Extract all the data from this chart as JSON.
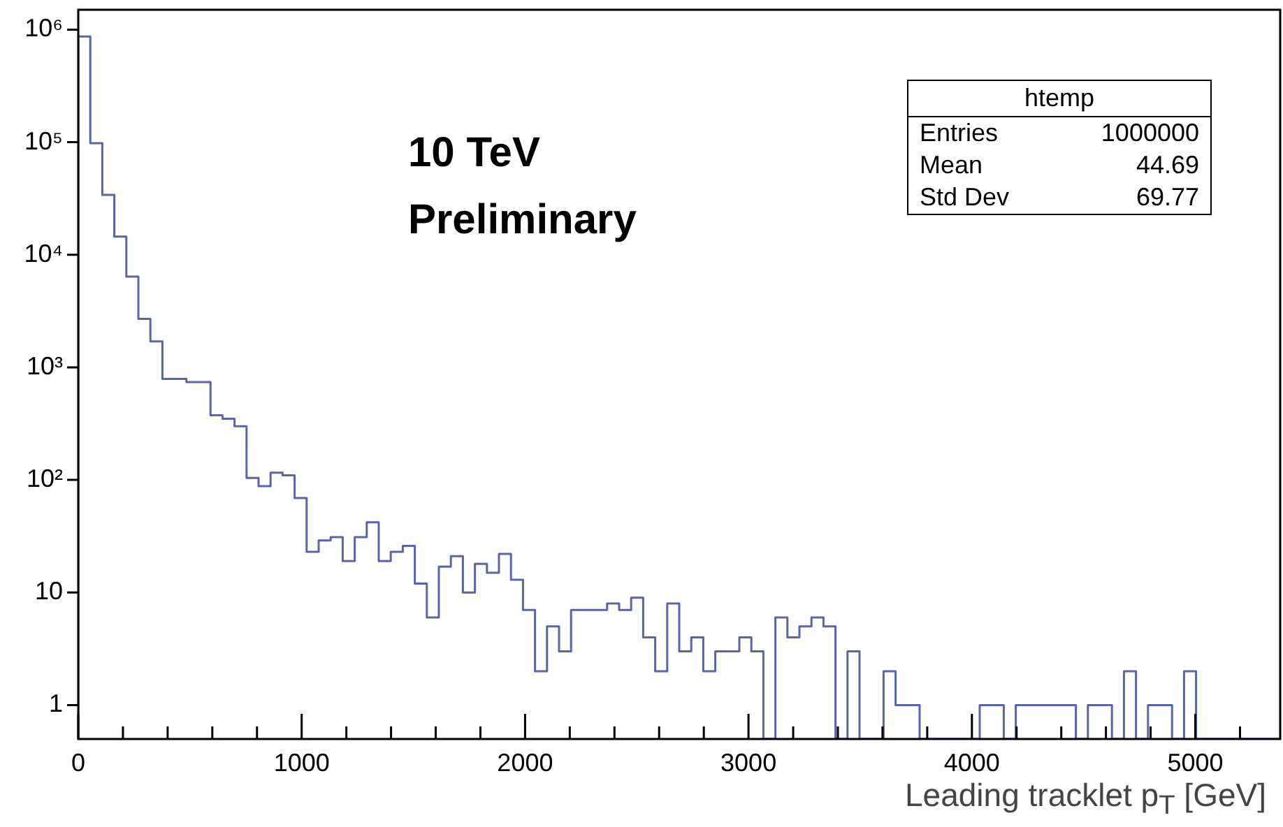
{
  "chart_data": {
    "type": "histogram",
    "color": "#5c63a8",
    "log": true,
    "xlabel": "Leading tracklet p$_{T}$ [GeV]",
    "xlim": [
      0,
      5380
    ],
    "ylim": [
      0.5,
      1500000
    ],
    "xticks": [
      0,
      {
        "value": 200,
        "label": null
      },
      {
        "value": 400,
        "label": null
      },
      {
        "value": 600,
        "label": null
      },
      {
        "value": 800,
        "label": null
      },
      1000,
      {
        "value": 1200,
        "label": null
      },
      {
        "value": 1400,
        "label": null
      },
      {
        "value": 1600,
        "label": null
      },
      {
        "value": 1800,
        "label": null
      },
      2000,
      {
        "value": 2200,
        "label": null
      },
      {
        "value": 2400,
        "label": null
      },
      {
        "value": 2600,
        "label": null
      },
      {
        "value": 2800,
        "label": null
      },
      3000,
      {
        "value": 3200,
        "label": null
      },
      {
        "value": 3400,
        "label": null
      },
      {
        "value": 3600,
        "label": null
      },
      {
        "value": 3800,
        "label": null
      },
      4000,
      {
        "value": 4200,
        "label": null
      },
      {
        "value": 4400,
        "label": null
      },
      {
        "value": 4600,
        "label": null
      },
      {
        "value": 4800,
        "label": null
      },
      5000,
      {
        "value": 5200,
        "label": null
      }
    ],
    "yticks": [
      1,
      10,
      {
        "value": 100,
        "label": "10²"
      },
      {
        "value": 1000,
        "label": "10³"
      },
      {
        "value": 10000,
        "label": "10⁴"
      },
      {
        "value": 100000,
        "label": "10⁵"
      },
      {
        "value": 1000000,
        "label": "10⁶"
      }
    ],
    "bins": [
      0,
      53.8,
      107.6,
      161.4,
      215.2,
      269,
      322.8,
      376.6,
      430.4,
      484.2,
      538,
      591.8,
      645.6,
      699.4,
      753.2,
      807,
      860.8,
      914.6,
      968.4,
      1022.2,
      1076,
      1129.8,
      1183.6,
      1237.4,
      1291.2,
      1345,
      1398.8,
      1452.6,
      1506.4,
      1560.2,
      1614,
      1667.8,
      1721.6,
      1775.4,
      1829.2,
      1883,
      1936.8,
      1990.6,
      2044.4,
      2098.2,
      2152,
      2205.8,
      2259.6,
      2313.4,
      2367.2,
      2421,
      2474.8,
      2528.6,
      2582.4,
      2636.2,
      2690,
      2743.8,
      2797.6,
      2851.4,
      2905.2,
      2959,
      3012.8,
      3066.6,
      3120.4,
      3174.2,
      3228,
      3281.8,
      3335.6,
      3389.4,
      3443.2,
      3497,
      3550.8,
      3604.6,
      3658.4,
      3712.2,
      3766,
      3819.8,
      3873.6,
      3927.4,
      3981.2,
      4035,
      4088.8,
      4142.6,
      4196.4,
      4250.2,
      4304,
      4357.8,
      4411.6,
      4465.4,
      4519.2,
      4573,
      4626.8,
      4680.6,
      4734.4,
      4788.2,
      4842,
      4895.8,
      4949.6,
      5003.4,
      5057.2,
      5111,
      5164.8,
      5218.6,
      5272.4,
      5326.2,
      5380
    ],
    "values": [
      870000,
      98000,
      34000,
      14500,
      6400,
      2700,
      1700,
      790,
      790,
      740,
      740,
      375,
      350,
      300,
      104,
      88,
      116,
      110,
      69,
      23,
      29,
      31,
      19,
      31,
      42,
      19,
      23,
      26,
      12,
      6,
      17,
      21,
      10,
      18,
      15,
      22,
      13,
      7,
      2,
      5,
      3,
      7,
      7,
      7,
      8,
      7,
      9,
      4,
      2,
      8,
      3,
      4,
      2,
      3,
      3,
      4,
      3,
      null,
      6,
      4,
      5,
      6,
      5,
      null,
      3,
      null,
      null,
      2,
      1,
      1,
      null,
      null,
      null,
      null,
      null,
      1,
      1,
      null,
      1,
      1,
      1,
      1,
      1,
      null,
      1,
      1,
      null,
      2,
      null,
      1,
      1,
      null,
      2,
      null,
      null,
      null,
      null,
      null,
      null,
      null
    ],
    "annotations": [
      "10 TeV",
      "Preliminary",
      "htemp",
      "Entries 1000000",
      "Mean 44.69",
      "Std Dev 69.77"
    ]
  }
}
